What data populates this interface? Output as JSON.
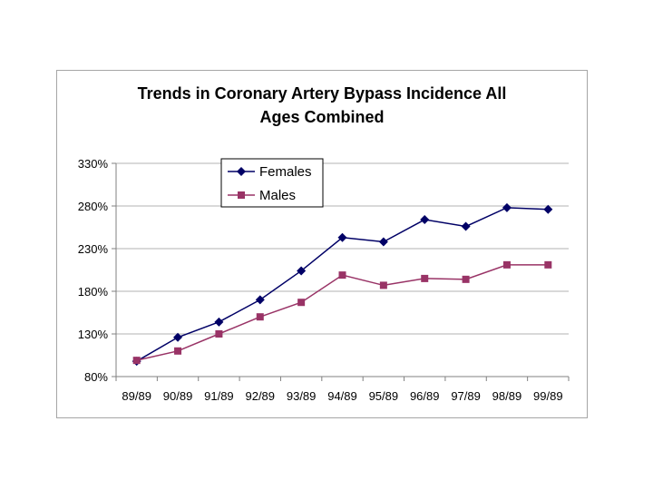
{
  "chart_data": {
    "type": "line",
    "title": [
      "Trends in Coronary Artery Bypass Incidence All",
      "Ages Combined"
    ],
    "xlabel": "",
    "ylabel": "",
    "categories": [
      "89/89",
      "90/89",
      "91/89",
      "92/89",
      "93/89",
      "94/89",
      "95/89",
      "96/89",
      "97/89",
      "98/89",
      "99/89"
    ],
    "y_ticks": [
      "80%",
      "130%",
      "180%",
      "230%",
      "280%",
      "330%"
    ],
    "ylim": [
      80,
      330
    ],
    "grid": true,
    "legend_position": "top-left inside plot",
    "series": [
      {
        "name": "Females",
        "color": "#000066",
        "marker": "diamond",
        "values": [
          98,
          126,
          144,
          170,
          204,
          243,
          238,
          264,
          256,
          278,
          276
        ]
      },
      {
        "name": "Males",
        "color": "#993366",
        "marker": "square",
        "values": [
          99,
          110,
          130,
          150,
          167,
          199,
          187,
          195,
          194,
          211,
          211
        ]
      }
    ]
  }
}
